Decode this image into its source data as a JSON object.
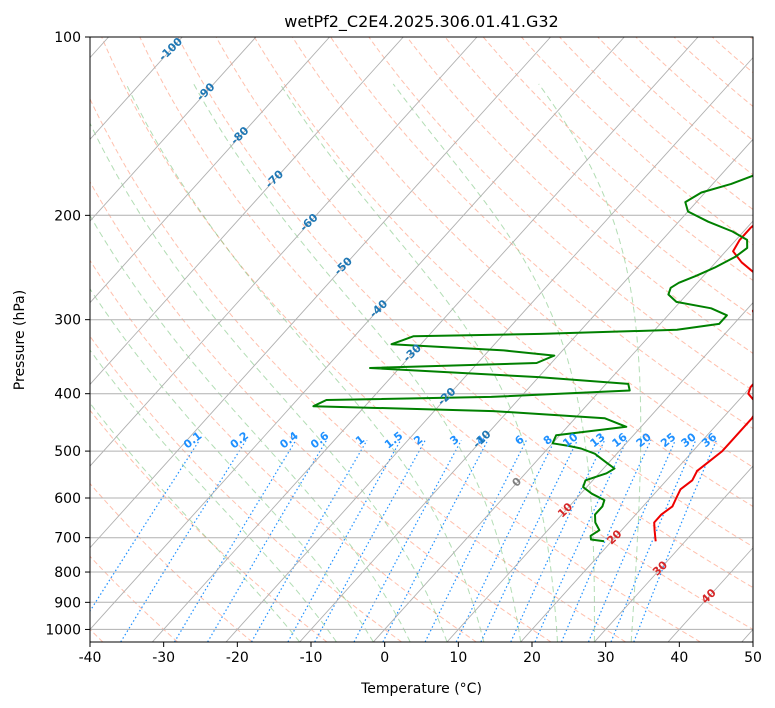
{
  "chart_data": {
    "type": "line",
    "title": "wetPf2_C2E4.2025.306.01.41.G32",
    "xlabel": "Temperature (°C)",
    "ylabel": "Pressure (hPa)",
    "xlim": [
      -40,
      50
    ],
    "ylim": [
      1050,
      100
    ],
    "y_scale": "log",
    "grid": true,
    "x_ticks": [
      -40,
      -30,
      -20,
      -10,
      0,
      10,
      20,
      30,
      40,
      50
    ],
    "y_ticks": [
      100,
      200,
      300,
      400,
      500,
      600,
      700,
      800,
      900,
      1000
    ],
    "skew_isotherm_labels": [
      -100,
      -90,
      -80,
      -70,
      -60,
      -50,
      -40,
      -30,
      -20,
      -10,
      0,
      10,
      20,
      30,
      40
    ],
    "mixing_ratio_labels": [
      "0.1",
      "0.2",
      "0.4",
      "0.6",
      "1",
      "1.5",
      "2",
      "3",
      "4",
      "6",
      "8",
      "10",
      "13",
      "16",
      "20",
      "25",
      "30",
      "36"
    ],
    "colors": {
      "temperature": "#ee0000",
      "dewpoint": "#008000",
      "isotherm_neg": "#1f77b4",
      "isotherm_pos": "#d62728",
      "isotherm_zero": "#808080",
      "mixing_ratio": "#1e90ff",
      "dry_adiabat": "#ff8c69",
      "moist_adiabat": "#66bb6a",
      "grid": "#b0b0b0"
    },
    "series": [
      {
        "name": "Temperature",
        "points": [
          [
            26.0,
            710
          ],
          [
            25.5,
            700
          ],
          [
            24.5,
            680
          ],
          [
            23.5,
            660
          ],
          [
            23.5,
            640
          ],
          [
            24.0,
            620
          ],
          [
            23.5,
            600
          ],
          [
            23.0,
            580
          ],
          [
            23.5,
            560
          ],
          [
            23.0,
            540
          ],
          [
            23.5,
            520
          ],
          [
            24.0,
            500
          ],
          [
            24.0,
            480
          ],
          [
            24.0,
            460
          ],
          [
            24.0,
            440
          ],
          [
            23.5,
            420
          ],
          [
            22.0,
            410
          ],
          [
            20.5,
            400
          ],
          [
            20.0,
            390
          ],
          [
            20.0,
            380
          ],
          [
            19.5,
            360
          ],
          [
            18.5,
            350
          ],
          [
            18.0,
            340
          ],
          [
            18.0,
            330
          ],
          [
            16.0,
            315
          ],
          [
            12.5,
            300
          ],
          [
            11.0,
            290
          ],
          [
            10.5,
            280
          ],
          [
            10.5,
            270
          ],
          [
            9.0,
            260
          ],
          [
            6.5,
            250
          ],
          [
            3.5,
            240
          ],
          [
            1.0,
            230
          ],
          [
            0.5,
            220
          ],
          [
            0.5,
            210
          ],
          [
            1.0,
            200
          ],
          [
            1.5,
            190
          ],
          [
            1.0,
            180
          ],
          [
            -1.5,
            170
          ],
          [
            -4.5,
            160
          ],
          [
            -5.0,
            155
          ],
          [
            -4.5,
            150
          ],
          [
            -3.0,
            145
          ],
          [
            -1.0,
            140
          ],
          [
            1.0,
            135
          ],
          [
            2.0,
            130
          ],
          [
            2.0,
            125
          ],
          [
            2.0,
            120
          ],
          [
            2.0,
            115
          ],
          [
            2.5,
            110
          ],
          [
            2.5,
            105
          ],
          [
            2.0,
            100
          ]
        ]
      },
      {
        "name": "Dewpoint",
        "points": [
          [
            19.0,
            710
          ],
          [
            17.0,
            705
          ],
          [
            16.5,
            695
          ],
          [
            17.0,
            680
          ],
          [
            15.5,
            660
          ],
          [
            14.5,
            640
          ],
          [
            14.5,
            620
          ],
          [
            14.0,
            605
          ],
          [
            11.5,
            590
          ],
          [
            9.5,
            575
          ],
          [
            9.0,
            560
          ],
          [
            11.0,
            545
          ],
          [
            11.5,
            535
          ],
          [
            10.0,
            525
          ],
          [
            8.5,
            515
          ],
          [
            7.0,
            505
          ],
          [
            4.5,
            495
          ],
          [
            2.5,
            490
          ],
          [
            0.0,
            485
          ],
          [
            -0.5,
            470
          ],
          [
            8.0,
            455
          ],
          [
            4.0,
            440
          ],
          [
            -12.0,
            428
          ],
          [
            -37.0,
            420
          ],
          [
            -36.0,
            410
          ],
          [
            -14.0,
            405
          ],
          [
            4.0,
            395
          ],
          [
            3.0,
            385
          ],
          [
            -10.0,
            375
          ],
          [
            -34.0,
            362
          ],
          [
            -12.0,
            355
          ],
          [
            -10.5,
            345
          ],
          [
            -18.0,
            338
          ],
          [
            -34.0,
            330
          ],
          [
            -33.0,
            325
          ],
          [
            -32.0,
            320
          ],
          [
            -15.0,
            317
          ],
          [
            3.0,
            312
          ],
          [
            8.0,
            305
          ],
          [
            8.0,
            295
          ],
          [
            5.0,
            287
          ],
          [
            -0.5,
            280
          ],
          [
            -2.5,
            272
          ],
          [
            -3.0,
            265
          ],
          [
            -2.5,
            260
          ],
          [
            -1.0,
            253
          ],
          [
            0.5,
            245
          ],
          [
            2.0,
            235
          ],
          [
            2.5,
            227
          ],
          [
            1.5,
            220
          ],
          [
            -1.5,
            213
          ],
          [
            -6.0,
            205
          ],
          [
            -10.0,
            197
          ],
          [
            -11.5,
            190
          ],
          [
            -10.5,
            183
          ],
          [
            -7.5,
            177
          ],
          [
            -5.0,
            170
          ],
          [
            -5.0,
            163
          ],
          [
            -5.5,
            155
          ],
          [
            -5.0,
            148
          ],
          [
            -6.0,
            143
          ],
          [
            -8.0,
            138
          ],
          [
            -8.5,
            133
          ],
          [
            -7.0,
            127
          ],
          [
            -5.0,
            120
          ],
          [
            -3.5,
            113
          ],
          [
            -2.5,
            107
          ],
          [
            -2.0,
            100
          ]
        ]
      }
    ]
  }
}
